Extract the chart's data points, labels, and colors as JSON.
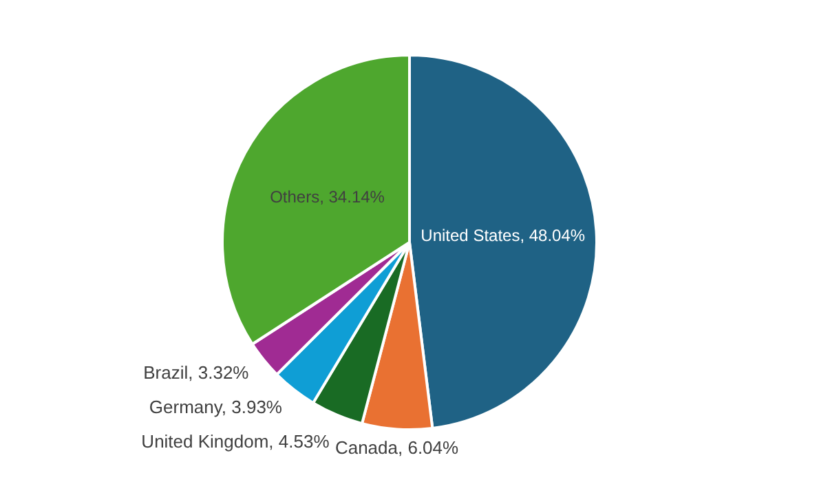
{
  "chart_data": {
    "type": "pie",
    "categories": [
      "United States",
      "Canada",
      "United Kingdom",
      "Germany",
      "Brazil",
      "Others"
    ],
    "values": [
      48.04,
      6.04,
      4.53,
      3.93,
      3.32,
      34.14
    ],
    "value_labels": [
      "48.04%",
      "6.04%",
      "4.53%",
      "3.93%",
      "3.32%",
      "34.14%"
    ],
    "colors": [
      "#1f6285",
      "#e97132",
      "#196b24",
      "#0f9ed5",
      "#a02b93",
      "#4ea72e"
    ],
    "legend": false
  }
}
